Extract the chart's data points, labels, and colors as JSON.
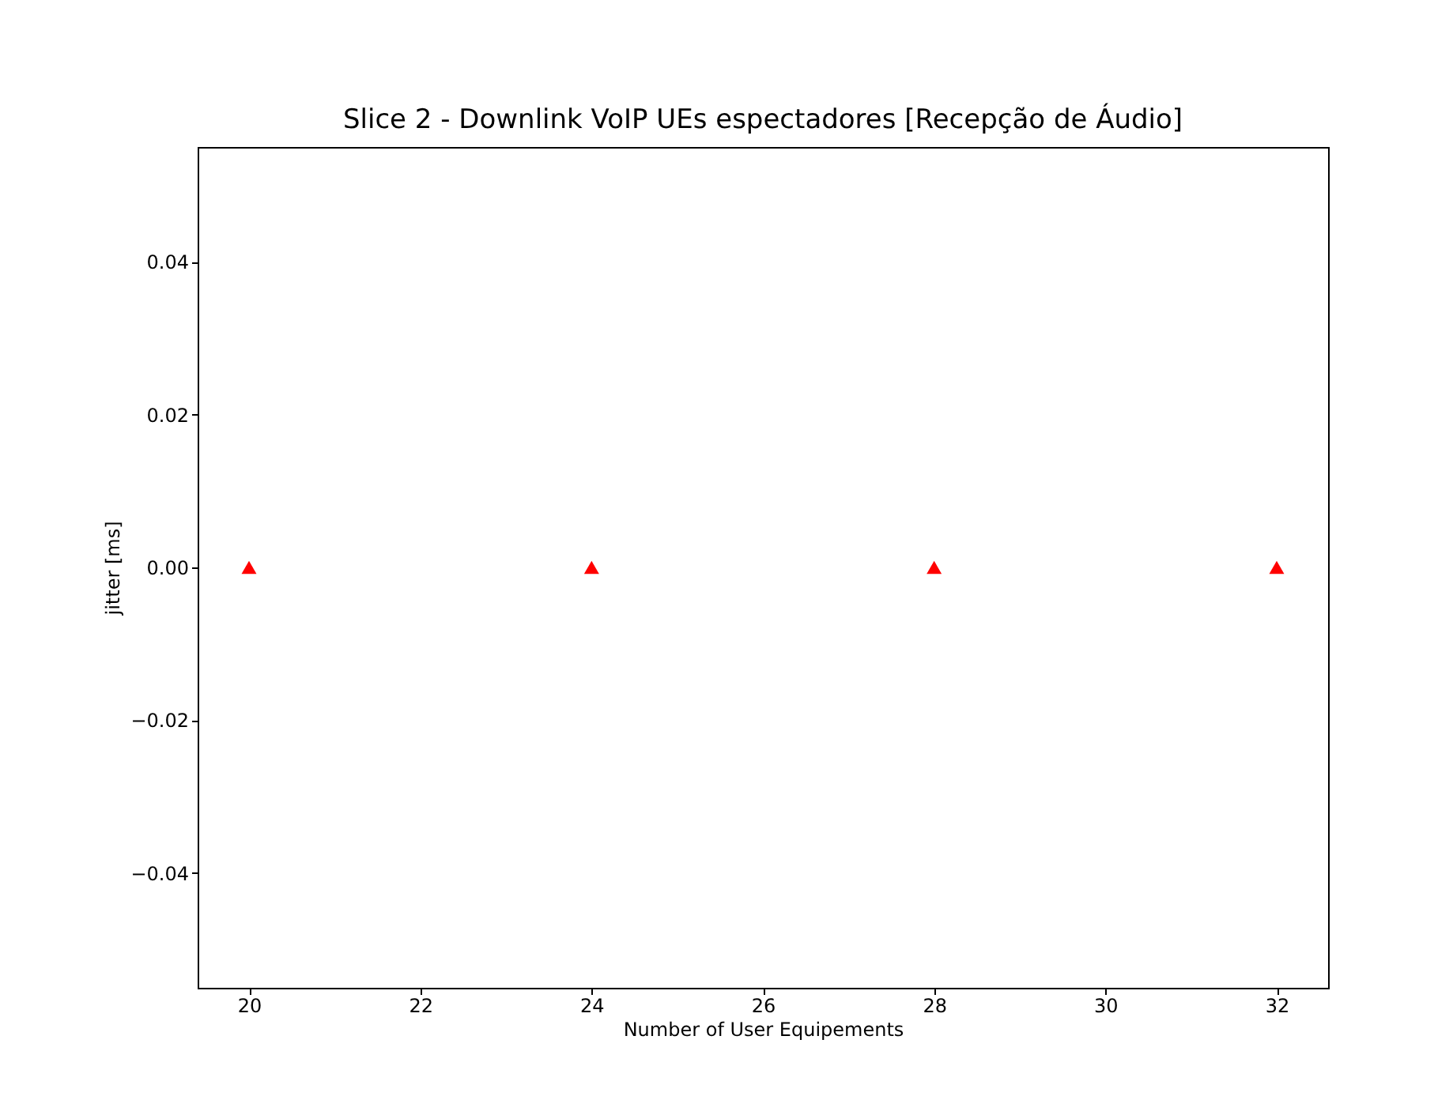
{
  "chart_data": {
    "type": "scatter",
    "title": "Slice 2 - Downlink VoIP UEs espectadores [Recepção de Áudio]",
    "xlabel": "Number of User Equipements",
    "ylabel": "jitter [ms]",
    "x": [
      20,
      24,
      28,
      32
    ],
    "series": [
      {
        "color": "#ff0000",
        "values": [
          0,
          0,
          0,
          0
        ]
      }
    ],
    "marker": "triangle",
    "xlim": [
      19.4,
      32.6
    ],
    "xticks": [
      20,
      22,
      24,
      26,
      28,
      30,
      32
    ],
    "ylim": [
      -0.055,
      0.055
    ],
    "yticks": [
      {
        "value": -0.04,
        "label": "−0.04"
      },
      {
        "value": -0.02,
        "label": "−0.02"
      },
      {
        "value": 0,
        "label": "0.00"
      },
      0.02,
      0.04
    ],
    "grid": false
  }
}
